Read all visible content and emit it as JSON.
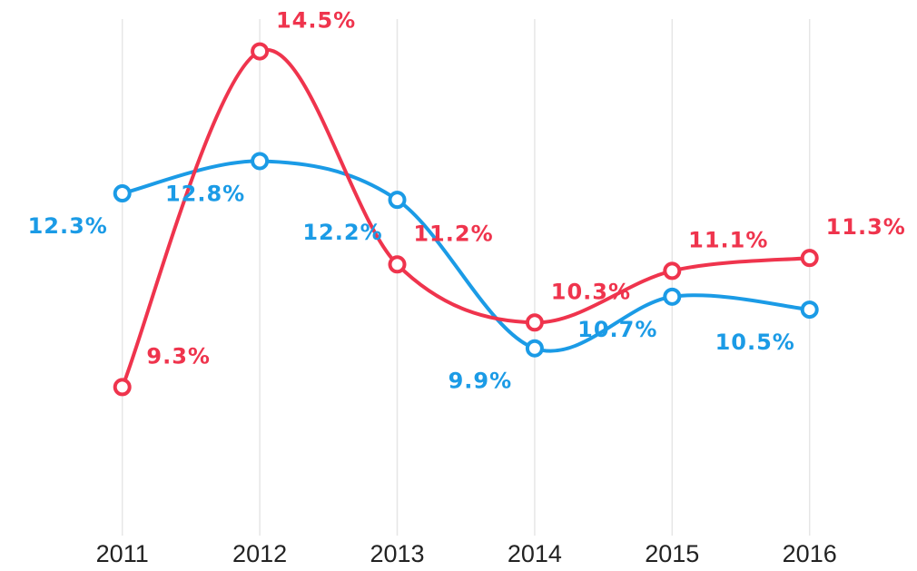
{
  "chart_data": {
    "type": "line",
    "categories": [
      "2011",
      "2012",
      "2013",
      "2014",
      "2015",
      "2016"
    ],
    "series": [
      {
        "color": "#1b9be6",
        "values": [
          12.3,
          12.8,
          12.2,
          9.9,
          10.7,
          10.5
        ],
        "value_labels": [
          "12.3%",
          "12.8%",
          "12.2%",
          "9.9%",
          "10.7%",
          "10.5%"
        ]
      },
      {
        "color": "#ef344d",
        "values": [
          9.3,
          14.5,
          11.2,
          10.3,
          11.1,
          11.3
        ],
        "value_labels": [
          "9.3%",
          "14.5%",
          "11.2%",
          "10.3%",
          "11.1%",
          "11.3%"
        ]
      }
    ],
    "ylim": [
      7,
      15
    ],
    "grid": true
  }
}
